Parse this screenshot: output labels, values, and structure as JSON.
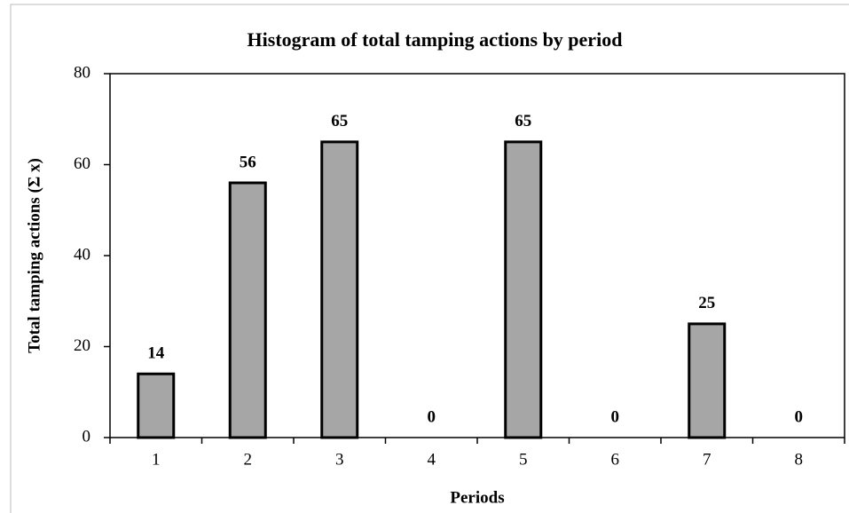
{
  "chart_data": {
    "type": "bar",
    "title": "Histogram of total tamping actions by period",
    "x_label": "Periods",
    "y_label": "Total tamping actions (Σ x)",
    "categories": [
      "1",
      "2",
      "3",
      "4",
      "5",
      "6",
      "7",
      "8"
    ],
    "values": [
      14,
      56,
      65,
      0,
      65,
      0,
      25,
      0
    ],
    "color": "#a6a6a6",
    "ylim": [
      0,
      80
    ],
    "yticks": [
      0,
      20,
      40,
      60,
      80
    ],
    "grid": false
  }
}
